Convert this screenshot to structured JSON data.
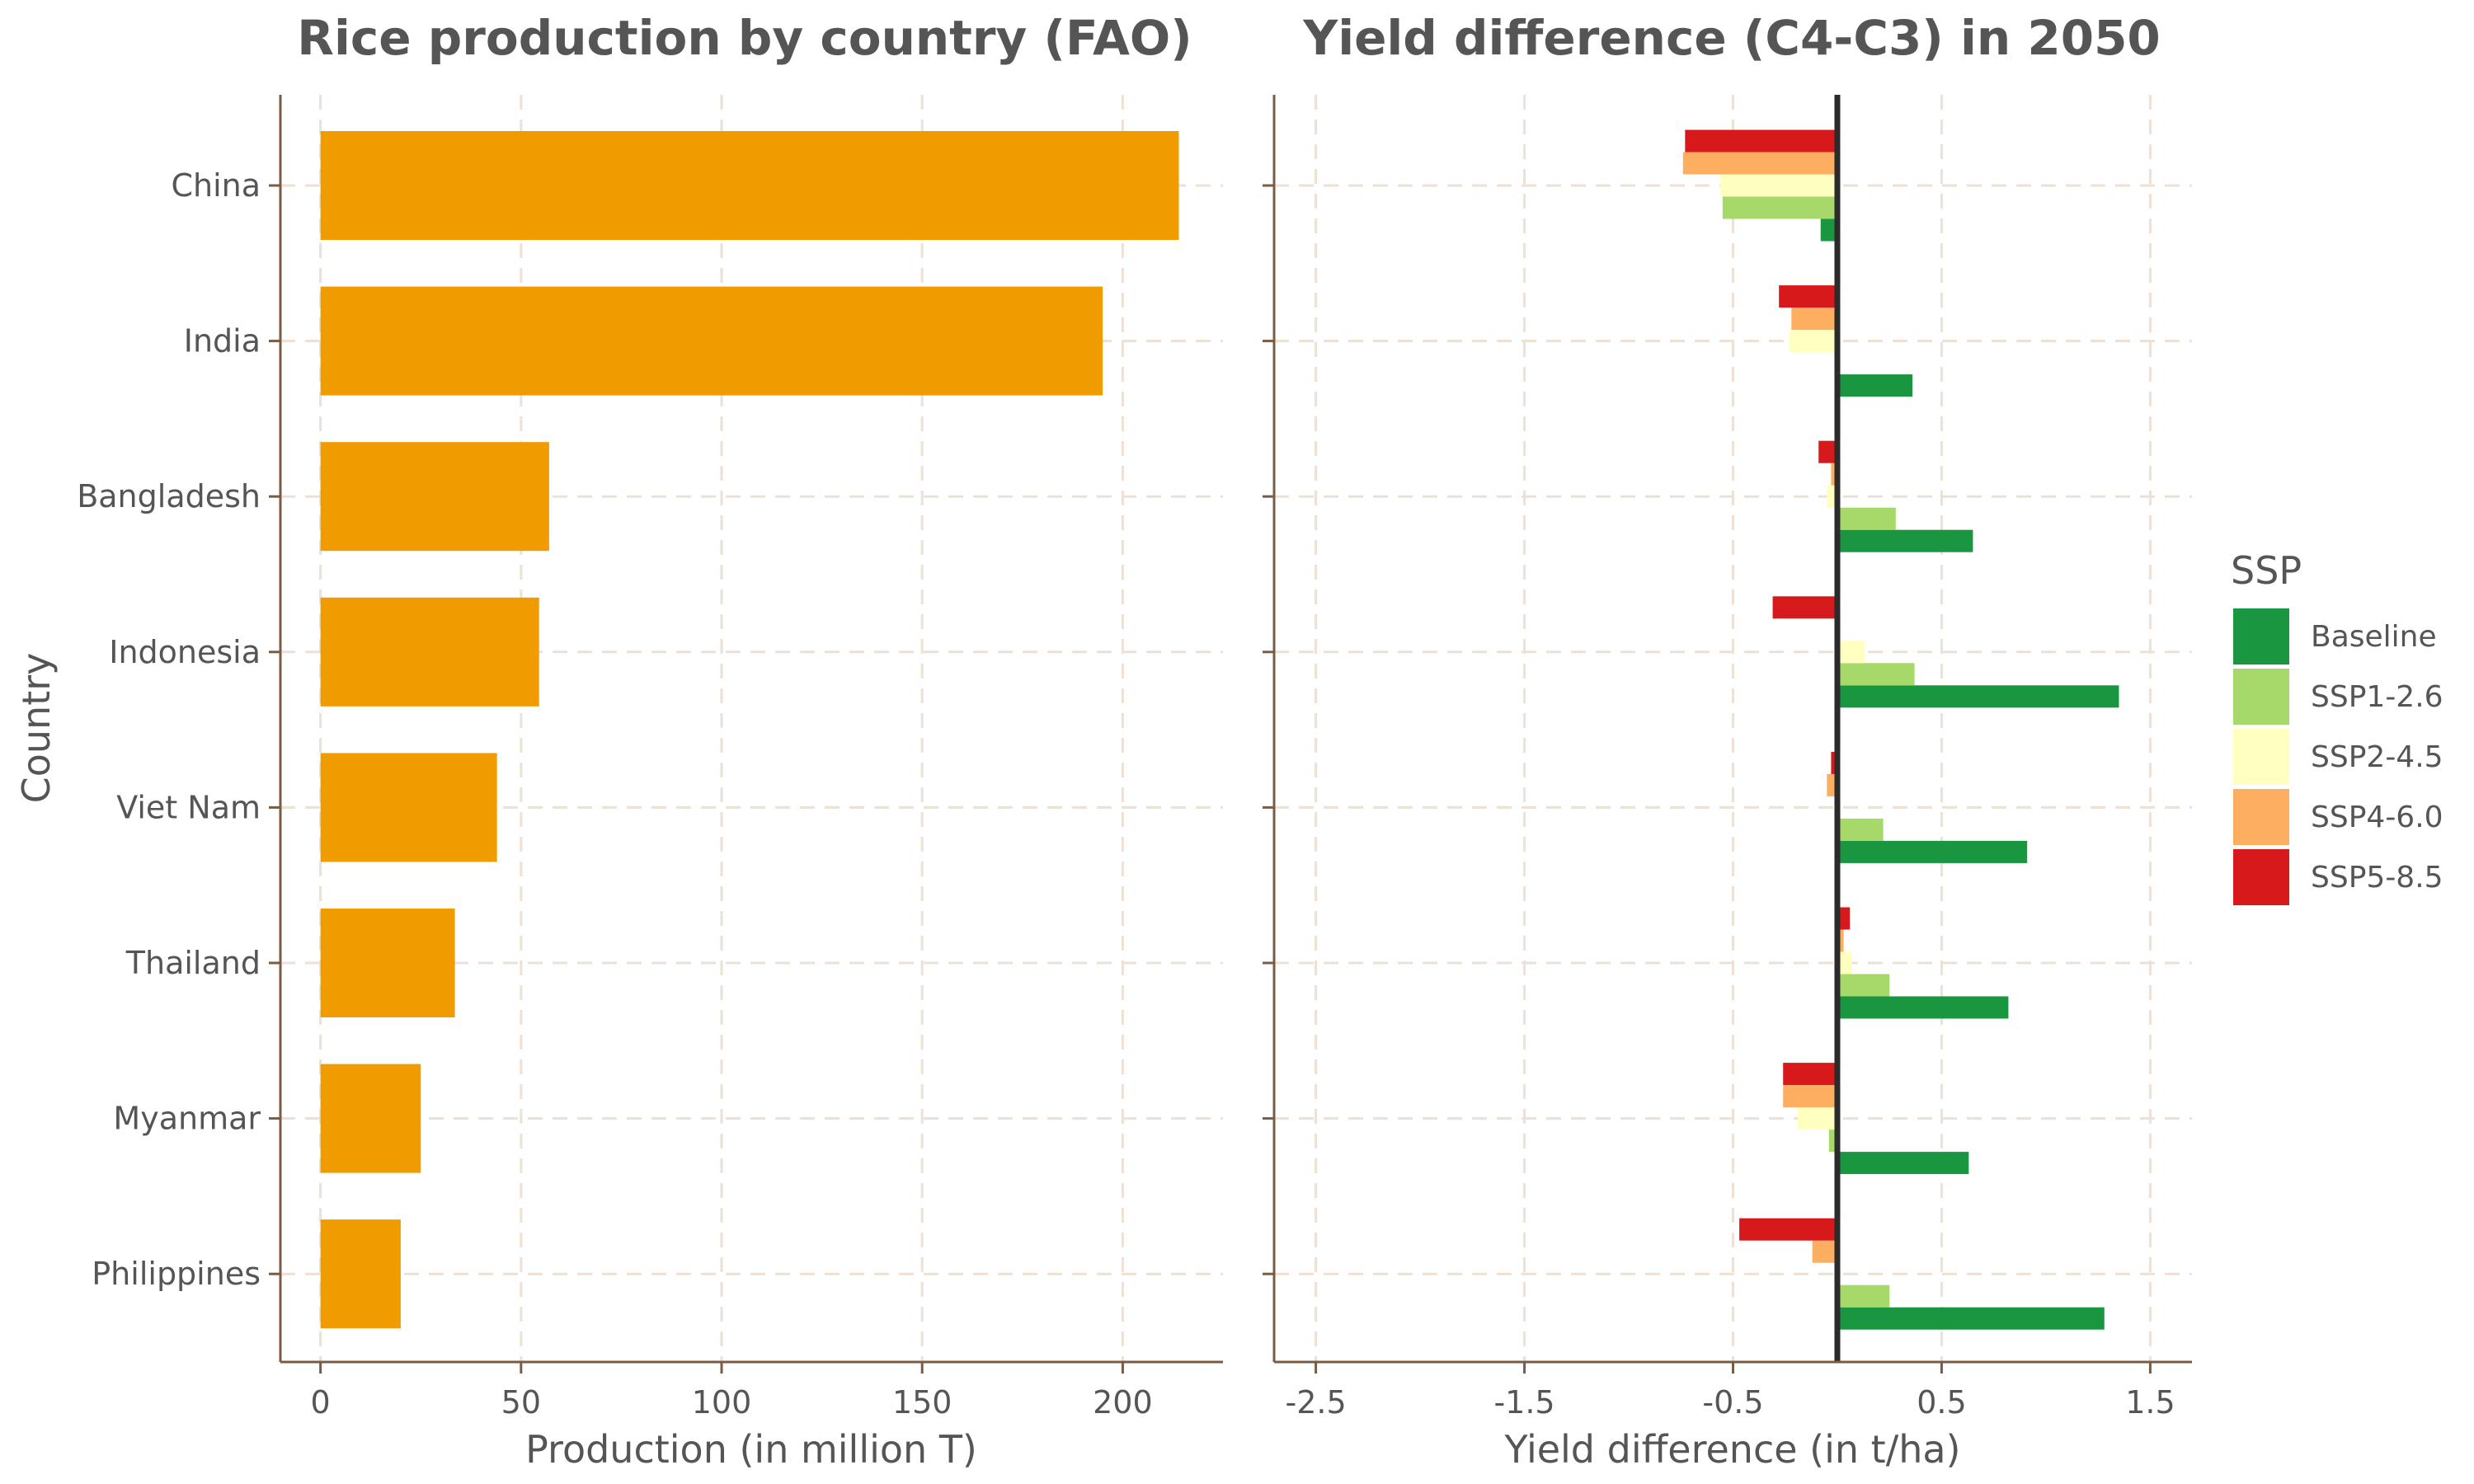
{
  "colors": {
    "production_bar": "#f09b00",
    "axis": "#7a5c45",
    "grid": "#ede0d4",
    "text": "#555555",
    "zero_line": "#2b2b2b"
  },
  "chart_data": [
    {
      "type": "bar",
      "orientation": "horizontal",
      "title": "Rice production by country (FAO)",
      "xlabel": "Production (in million T)",
      "ylabel": "Country",
      "categories": [
        "China",
        "India",
        "Bangladesh",
        "Indonesia",
        "Viet Nam",
        "Thailand",
        "Myanmar",
        "Philippines"
      ],
      "values": [
        214,
        195,
        57,
        54.5,
        44,
        33.5,
        25,
        20
      ],
      "xlim": [
        -10,
        225
      ],
      "xticks": [
        "0",
        "50",
        "100",
        "150",
        "200"
      ],
      "grid": true
    },
    {
      "type": "bar",
      "orientation": "horizontal",
      "title": "Yield difference (C4-C3) in 2050",
      "xlabel": "Yield difference (in t/ha)",
      "categories": [
        "China",
        "India",
        "Bangladesh",
        "Indonesia",
        "Viet Nam",
        "Thailand",
        "Myanmar",
        "Philippines"
      ],
      "xlim": [
        -2.7,
        1.7
      ],
      "xticks": [
        "-2.5",
        "-1.5",
        "-0.5",
        "0.5",
        "1.5"
      ],
      "legend_title": "SSP",
      "legend_position": "right",
      "grid": true,
      "series": [
        {
          "name": "Baseline",
          "color": "#1a9641",
          "values": [
            -0.08,
            0.36,
            0.65,
            1.35,
            0.91,
            0.82,
            0.63,
            1.28
          ]
        },
        {
          "name": "SSP1-2.6",
          "color": "#a6d96a",
          "values": [
            -0.55,
            0.0,
            0.28,
            0.37,
            0.22,
            0.25,
            -0.04,
            0.25
          ]
        },
        {
          "name": "SSP2-4.5",
          "color": "#ffffc0",
          "values": [
            -0.56,
            -0.23,
            -0.05,
            0.13,
            0.0,
            0.07,
            -0.19,
            0.0
          ]
        },
        {
          "name": "SSP4-6.0",
          "color": "#fdae61",
          "values": [
            -0.74,
            -0.22,
            -0.03,
            -0.01,
            -0.05,
            0.03,
            -0.26,
            -0.12
          ]
        },
        {
          "name": "SSP5-8.5",
          "color": "#d7191c",
          "values": [
            -0.73,
            -0.28,
            -0.09,
            -0.31,
            -0.03,
            0.06,
            -0.26,
            -0.47
          ]
        }
      ]
    }
  ]
}
